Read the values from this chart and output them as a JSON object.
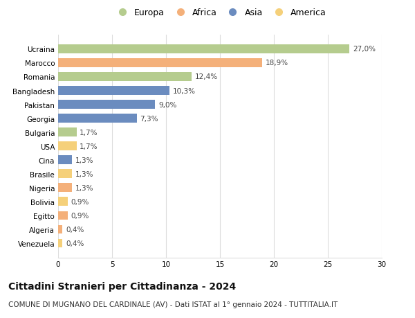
{
  "countries": [
    "Ucraina",
    "Marocco",
    "Romania",
    "Bangladesh",
    "Pakistan",
    "Georgia",
    "Bulgaria",
    "USA",
    "Cina",
    "Brasile",
    "Nigeria",
    "Bolivia",
    "Egitto",
    "Algeria",
    "Venezuela"
  ],
  "values": [
    27.0,
    18.9,
    12.4,
    10.3,
    9.0,
    7.3,
    1.7,
    1.7,
    1.3,
    1.3,
    1.3,
    0.9,
    0.9,
    0.4,
    0.4
  ],
  "labels": [
    "27,0%",
    "18,9%",
    "12,4%",
    "10,3%",
    "9,0%",
    "7,3%",
    "1,7%",
    "1,7%",
    "1,3%",
    "1,3%",
    "1,3%",
    "0,9%",
    "0,9%",
    "0,4%",
    "0,4%"
  ],
  "continents": [
    "Europa",
    "Africa",
    "Europa",
    "Asia",
    "Asia",
    "Asia",
    "Europa",
    "America",
    "Asia",
    "America",
    "Africa",
    "America",
    "Africa",
    "Africa",
    "America"
  ],
  "continent_colors": {
    "Europa": "#b5cc8e",
    "Africa": "#f4b07a",
    "Asia": "#6b8cbf",
    "America": "#f5d07a"
  },
  "legend_order": [
    "Europa",
    "Africa",
    "Asia",
    "America"
  ],
  "xlim": [
    0,
    30
  ],
  "xticks": [
    0,
    5,
    10,
    15,
    20,
    25,
    30
  ],
  "title": "Cittadini Stranieri per Cittadinanza - 2024",
  "subtitle": "COMUNE DI MUGNANO DEL CARDINALE (AV) - Dati ISTAT al 1° gennaio 2024 - TUTTITALIA.IT",
  "title_fontsize": 10,
  "subtitle_fontsize": 7.5,
  "label_fontsize": 7.5,
  "tick_fontsize": 7.5,
  "background_color": "#ffffff",
  "grid_color": "#dddddd",
  "bar_height": 0.62
}
